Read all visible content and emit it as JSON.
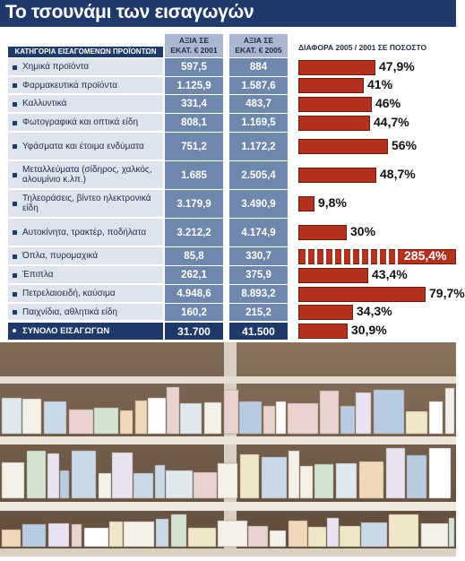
{
  "title": "Το τσουνάμι των εισαγωγών",
  "headers": {
    "category": "ΚΑΤΗΓΟΡΙΑ ΕΙΣΑΓΟΜΕΝΩΝ ΠΡΟΪΟΝΤΩΝ",
    "value_2001_line1": "ΑΞΙΑ ΣΕ",
    "value_2001_line2": "ΕΚΑΤ. € 2001",
    "value_2005_line1": "ΑΞΙΑ ΣΕ",
    "value_2005_line2": "ΕΚΑΤ. € 2005",
    "difference": "ΔΙΑΦΟΡΑ 2005 / 2001 ΣΕ ΠΟΣΟΣΤΟ"
  },
  "chart_data": {
    "type": "bar",
    "categories": [
      "Χημικά προϊόντα",
      "Φαρμακευτικά προϊόντα",
      "Καλλυντικά",
      "Φωτογραφικά και οπτικά είδη",
      "Υφάσματα και έτοιμα ενδύματα",
      "Μεταλλεύματα (σίδηρος, χαλκός, αλουμίνιο κ.λπ.)",
      "Τηλεοράσεις, βίντεο ηλεκτρονικά είδη",
      "Αυτοκίνητα, τρακτέρ, ποδήλατα",
      "Όπλα, πυρομαχικά",
      "Έπιπλα",
      "Πετρελαιοειδή, καύσιμα",
      "Παιχνίδια, αθλητικά είδη"
    ],
    "values_2001": [
      "597,5",
      "1.125,9",
      "331,4",
      "808,1",
      "751,2",
      "1.685",
      "3.179,9",
      "3.212,2",
      "85,8",
      "262,1",
      "4.948,6",
      "160,2"
    ],
    "values_2005": [
      "884",
      "1.587,6",
      "483,7",
      "1.169,5",
      "1.172,2",
      "2.505,4",
      "3.490,9",
      "4.174,9",
      "330,7",
      "375,9",
      "8.893,2",
      "215,2"
    ],
    "difference_pct": [
      47.9,
      41,
      46,
      44.7,
      56,
      48.7,
      9.8,
      30,
      285.4,
      43.4,
      79.7,
      34.3
    ],
    "difference_labels": [
      "47,9%",
      "41%",
      "46%",
      "44,7%",
      "56%",
      "48,7%",
      "9,8%",
      "30%",
      "285,4%",
      "43,4%",
      "79,7%",
      "34,3%"
    ],
    "total": {
      "label": "ΣΥΝΟΛΟ ΕΙΣΑΓΩΓΩΝ",
      "value_2001": "31.700",
      "value_2005": "41.500",
      "difference_pct": 30.9,
      "difference_label": "30,9%"
    },
    "broken_axis_category_index": 8,
    "colors": {
      "bar": "#b3321f",
      "header": "#1f3a68",
      "value_column": "#6f87ad"
    }
  }
}
